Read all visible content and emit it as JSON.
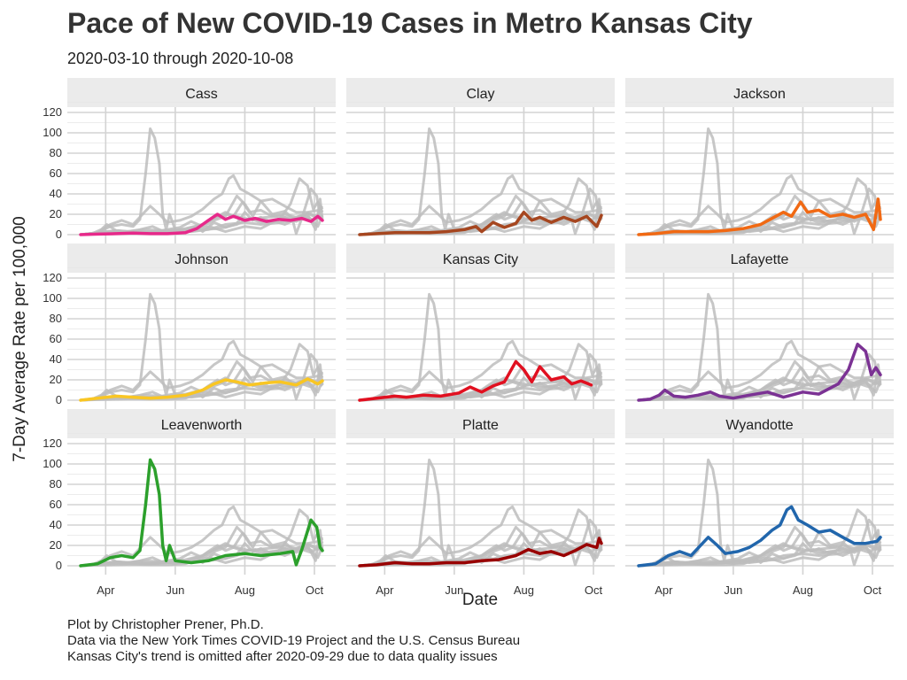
{
  "header": {
    "title": "Pace of New COVID-19 Cases in Metro Kansas City",
    "subtitle": "2020-03-10 through 2020-10-08"
  },
  "caption": {
    "line1": "Plot by Christopher Prener, Ph.D.",
    "line2": "Data via the New York Times COVID-19 Project and the U.S. Census Bureau",
    "line3": "Kansas City's trend is omitted after 2020-09-29 due to data quality issues"
  },
  "chart_data": {
    "type": "line",
    "facet_layout": "3x3 small multiples",
    "xlabel": "Date",
    "ylabel": "7-Day Average Rate per 100,000",
    "x_ticks": [
      "Apr",
      "Jun",
      "Aug",
      "Oct"
    ],
    "x_tick_dates": [
      "2020-04-01",
      "2020-06-01",
      "2020-08-01",
      "2020-10-01"
    ],
    "xlim": [
      "2020-03-10",
      "2020-10-08"
    ],
    "y_ticks": [
      0,
      20,
      40,
      60,
      80,
      100,
      120
    ],
    "ylim": [
      0,
      120
    ],
    "grid": true,
    "background_series_color": "#bdbdbd",
    "series": [
      {
        "name": "Cass",
        "color": "#e7298a",
        "points": [
          [
            "2020-03-10",
            0
          ],
          [
            "2020-03-25",
            0.5
          ],
          [
            "2020-04-10",
            1
          ],
          [
            "2020-04-25",
            1.5
          ],
          [
            "2020-05-10",
            1
          ],
          [
            "2020-05-25",
            1
          ],
          [
            "2020-06-10",
            2
          ],
          [
            "2020-06-20",
            6
          ],
          [
            "2020-06-30",
            14
          ],
          [
            "2020-07-08",
            20
          ],
          [
            "2020-07-15",
            15
          ],
          [
            "2020-07-22",
            18
          ],
          [
            "2020-08-01",
            14
          ],
          [
            "2020-08-10",
            16
          ],
          [
            "2020-08-20",
            13
          ],
          [
            "2020-08-30",
            15
          ],
          [
            "2020-09-10",
            14
          ],
          [
            "2020-09-20",
            16
          ],
          [
            "2020-09-28",
            13
          ],
          [
            "2020-10-04",
            18
          ],
          [
            "2020-10-08",
            14
          ]
        ]
      },
      {
        "name": "Clay",
        "color": "#a6461f",
        "points": [
          [
            "2020-03-10",
            0
          ],
          [
            "2020-03-25",
            1
          ],
          [
            "2020-04-10",
            2
          ],
          [
            "2020-04-25",
            2
          ],
          [
            "2020-05-10",
            2
          ],
          [
            "2020-05-25",
            3
          ],
          [
            "2020-06-10",
            5
          ],
          [
            "2020-06-20",
            8
          ],
          [
            "2020-06-25",
            3
          ],
          [
            "2020-07-05",
            12
          ],
          [
            "2020-07-15",
            7
          ],
          [
            "2020-07-25",
            11
          ],
          [
            "2020-08-01",
            22
          ],
          [
            "2020-08-08",
            14
          ],
          [
            "2020-08-15",
            17
          ],
          [
            "2020-08-25",
            12
          ],
          [
            "2020-09-05",
            17
          ],
          [
            "2020-09-15",
            13
          ],
          [
            "2020-09-25",
            18
          ],
          [
            "2020-10-04",
            8
          ],
          [
            "2020-10-08",
            19
          ]
        ]
      },
      {
        "name": "Jackson",
        "color": "#f16913",
        "points": [
          [
            "2020-03-10",
            0
          ],
          [
            "2020-03-25",
            1
          ],
          [
            "2020-04-10",
            3
          ],
          [
            "2020-04-25",
            3
          ],
          [
            "2020-05-10",
            3
          ],
          [
            "2020-05-25",
            4
          ],
          [
            "2020-06-10",
            6
          ],
          [
            "2020-06-25",
            10
          ],
          [
            "2020-07-05",
            16
          ],
          [
            "2020-07-15",
            22
          ],
          [
            "2020-07-22",
            18
          ],
          [
            "2020-07-30",
            32
          ],
          [
            "2020-08-05",
            22
          ],
          [
            "2020-08-15",
            24
          ],
          [
            "2020-08-25",
            18
          ],
          [
            "2020-09-05",
            20
          ],
          [
            "2020-09-15",
            17
          ],
          [
            "2020-09-25",
            20
          ],
          [
            "2020-10-02",
            5
          ],
          [
            "2020-10-06",
            35
          ],
          [
            "2020-10-08",
            15
          ]
        ]
      },
      {
        "name": "Johnson",
        "color": "#f9c623",
        "points": [
          [
            "2020-03-10",
            0
          ],
          [
            "2020-03-25",
            2
          ],
          [
            "2020-04-10",
            4
          ],
          [
            "2020-04-25",
            3
          ],
          [
            "2020-05-10",
            2
          ],
          [
            "2020-05-25",
            3
          ],
          [
            "2020-06-10",
            5
          ],
          [
            "2020-06-25",
            10
          ],
          [
            "2020-07-05",
            16
          ],
          [
            "2020-07-15",
            20
          ],
          [
            "2020-07-25",
            18
          ],
          [
            "2020-08-05",
            15
          ],
          [
            "2020-08-20",
            17
          ],
          [
            "2020-09-01",
            18
          ],
          [
            "2020-09-15",
            15
          ],
          [
            "2020-09-25",
            21
          ],
          [
            "2020-10-04",
            16
          ],
          [
            "2020-10-08",
            19
          ]
        ]
      },
      {
        "name": "Kansas City",
        "color": "#e11020",
        "points": [
          [
            "2020-03-10",
            0
          ],
          [
            "2020-03-25",
            2
          ],
          [
            "2020-04-10",
            4
          ],
          [
            "2020-04-20",
            3
          ],
          [
            "2020-05-05",
            5
          ],
          [
            "2020-05-20",
            4
          ],
          [
            "2020-06-05",
            7
          ],
          [
            "2020-06-15",
            13
          ],
          [
            "2020-06-25",
            8
          ],
          [
            "2020-07-05",
            14
          ],
          [
            "2020-07-15",
            18
          ],
          [
            "2020-07-25",
            38
          ],
          [
            "2020-08-01",
            30
          ],
          [
            "2020-08-08",
            18
          ],
          [
            "2020-08-15",
            33
          ],
          [
            "2020-08-25",
            20
          ],
          [
            "2020-09-05",
            23
          ],
          [
            "2020-09-12",
            16
          ],
          [
            "2020-09-20",
            19
          ],
          [
            "2020-09-29",
            15
          ]
        ]
      },
      {
        "name": "Lafayette",
        "color": "#7b3294",
        "points": [
          [
            "2020-03-10",
            0
          ],
          [
            "2020-03-20",
            1
          ],
          [
            "2020-03-28",
            5
          ],
          [
            "2020-04-02",
            10
          ],
          [
            "2020-04-10",
            4
          ],
          [
            "2020-04-20",
            3
          ],
          [
            "2020-05-01",
            5
          ],
          [
            "2020-05-12",
            8
          ],
          [
            "2020-05-20",
            4
          ],
          [
            "2020-06-01",
            2
          ],
          [
            "2020-06-15",
            5
          ],
          [
            "2020-07-01",
            8
          ],
          [
            "2020-07-15",
            3
          ],
          [
            "2020-08-01",
            8
          ],
          [
            "2020-08-15",
            6
          ],
          [
            "2020-09-01",
            16
          ],
          [
            "2020-09-10",
            30
          ],
          [
            "2020-09-18",
            55
          ],
          [
            "2020-09-25",
            48
          ],
          [
            "2020-09-30",
            25
          ],
          [
            "2020-10-04",
            32
          ],
          [
            "2020-10-08",
            25
          ]
        ]
      },
      {
        "name": "Leavenworth",
        "color": "#2ca02c",
        "points": [
          [
            "2020-03-10",
            0
          ],
          [
            "2020-03-25",
            2
          ],
          [
            "2020-04-05",
            8
          ],
          [
            "2020-04-15",
            10
          ],
          [
            "2020-04-25",
            8
          ],
          [
            "2020-05-01",
            15
          ],
          [
            "2020-05-06",
            60
          ],
          [
            "2020-05-10",
            104
          ],
          [
            "2020-05-14",
            95
          ],
          [
            "2020-05-18",
            70
          ],
          [
            "2020-05-21",
            20
          ],
          [
            "2020-05-24",
            5
          ],
          [
            "2020-05-27",
            20
          ],
          [
            "2020-06-01",
            5
          ],
          [
            "2020-06-15",
            3
          ],
          [
            "2020-06-30",
            5
          ],
          [
            "2020-07-15",
            10
          ],
          [
            "2020-08-01",
            12
          ],
          [
            "2020-08-15",
            10
          ],
          [
            "2020-09-01",
            12
          ],
          [
            "2020-09-12",
            14
          ],
          [
            "2020-09-15",
            1
          ],
          [
            "2020-09-20",
            16
          ],
          [
            "2020-09-28",
            45
          ],
          [
            "2020-10-03",
            38
          ],
          [
            "2020-10-06",
            18
          ],
          [
            "2020-10-08",
            15
          ]
        ]
      },
      {
        "name": "Platte",
        "color": "#990000",
        "points": [
          [
            "2020-03-10",
            0
          ],
          [
            "2020-03-25",
            1
          ],
          [
            "2020-04-10",
            3
          ],
          [
            "2020-04-25",
            2
          ],
          [
            "2020-05-10",
            2
          ],
          [
            "2020-05-25",
            3
          ],
          [
            "2020-06-10",
            3
          ],
          [
            "2020-06-25",
            5
          ],
          [
            "2020-07-10",
            6
          ],
          [
            "2020-07-25",
            10
          ],
          [
            "2020-08-05",
            16
          ],
          [
            "2020-08-15",
            12
          ],
          [
            "2020-08-25",
            14
          ],
          [
            "2020-09-05",
            10
          ],
          [
            "2020-09-15",
            15
          ],
          [
            "2020-09-25",
            21
          ],
          [
            "2020-10-04",
            18
          ],
          [
            "2020-10-06",
            27
          ],
          [
            "2020-10-08",
            22
          ]
        ]
      },
      {
        "name": "Wyandotte",
        "color": "#2166ac",
        "points": [
          [
            "2020-03-10",
            0
          ],
          [
            "2020-03-25",
            2
          ],
          [
            "2020-04-05",
            10
          ],
          [
            "2020-04-15",
            14
          ],
          [
            "2020-04-25",
            10
          ],
          [
            "2020-05-05",
            22
          ],
          [
            "2020-05-10",
            28
          ],
          [
            "2020-05-18",
            20
          ],
          [
            "2020-05-25",
            12
          ],
          [
            "2020-06-05",
            14
          ],
          [
            "2020-06-15",
            18
          ],
          [
            "2020-06-25",
            25
          ],
          [
            "2020-07-05",
            35
          ],
          [
            "2020-07-12",
            40
          ],
          [
            "2020-07-18",
            55
          ],
          [
            "2020-07-22",
            58
          ],
          [
            "2020-07-28",
            45
          ],
          [
            "2020-08-05",
            40
          ],
          [
            "2020-08-15",
            33
          ],
          [
            "2020-08-25",
            35
          ],
          [
            "2020-09-05",
            28
          ],
          [
            "2020-09-15",
            22
          ],
          [
            "2020-09-25",
            22
          ],
          [
            "2020-10-05",
            24
          ],
          [
            "2020-10-08",
            28
          ]
        ]
      }
    ]
  }
}
